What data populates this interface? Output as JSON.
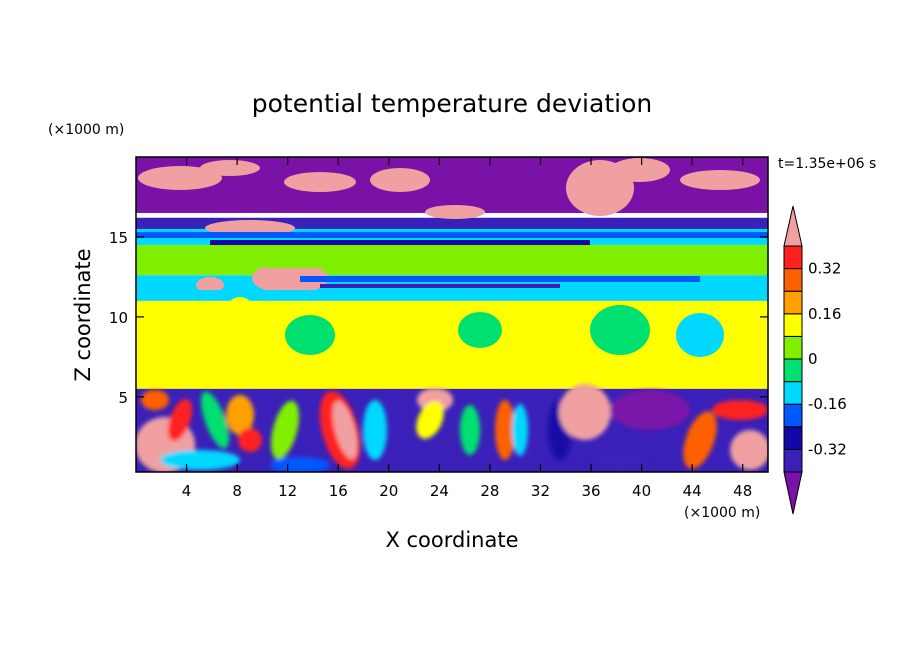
{
  "chart_data": {
    "type": "heatmap",
    "title": "potential temperature deviation",
    "xlabel": "X coordinate",
    "ylabel": "Z coordinate",
    "x_unit": "(×1000 m)",
    "y_unit": "(×1000 m)",
    "time_label": "t=1.35e+06 s",
    "xlim": [
      0,
      50
    ],
    "ylim": [
      0.3,
      20
    ],
    "x_ticks": [
      4,
      8,
      12,
      16,
      20,
      24,
      28,
      32,
      36,
      40,
      44,
      48
    ],
    "y_ticks": [
      5,
      10,
      15
    ],
    "colorbar": {
      "levels": [
        -0.4,
        -0.32,
        -0.24,
        -0.16,
        -0.08,
        0,
        0.08,
        0.16,
        0.24,
        0.32,
        0.4
      ],
      "colors": [
        "#7a12a8",
        "#3a20b8",
        "#1208a8",
        "#0058ff",
        "#00d8ff",
        "#00e070",
        "#80f000",
        "#ffff00",
        "#ffa000",
        "#ff6000",
        "#ff2020",
        "#f0a0a0"
      ],
      "tick_labels": [
        "0.32",
        "0.16",
        "0",
        "-0.16",
        "-0.32"
      ],
      "tick_values": [
        0.32,
        0.16,
        0,
        -0.16,
        -0.32
      ],
      "extend": "both"
    },
    "layers": [
      {
        "z": [
          16.5,
          20
        ],
        "value": -0.45,
        "note_from_image": "purple top layer with pink patches"
      },
      {
        "z": [
          15.5,
          16.2
        ],
        "value": -0.36
      },
      {
        "z": [
          14.5,
          15.5
        ],
        "value": -0.12
      },
      {
        "z": [
          12.6,
          14.5
        ],
        "value": 0.03
      },
      {
        "z": [
          11.0,
          12.6
        ],
        "value": -0.1
      },
      {
        "z": [
          5.5,
          11.0
        ],
        "value": 0.1
      },
      {
        "z": [
          0.3,
          5.5
        ],
        "value": -0.4
      }
    ]
  }
}
